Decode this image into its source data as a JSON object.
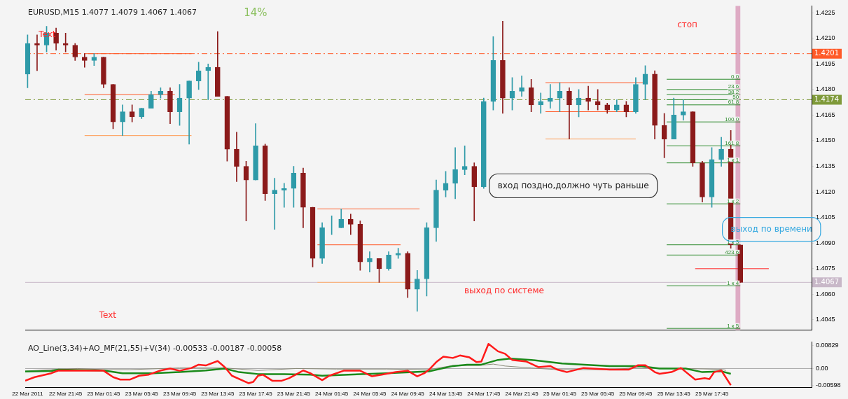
{
  "chart_data": [
    {
      "type": "candlestick",
      "title": "EURUSD,M15 1.4077 1.4079 1.4067 1.4067",
      "x": [
        "2011-03-22T17:45",
        "2011-03-22T18:45",
        "2011-03-22T19:45",
        "2011-03-22T20:45",
        "2011-03-22T21:45",
        "2011-03-22T22:45",
        "2011-03-22T23:45",
        "2011-03-23T00:45",
        "2011-03-23T01:45",
        "2011-03-23T02:45",
        "2011-03-23T03:45",
        "2011-03-23T04:45",
        "2011-03-23T05:45",
        "2011-03-23T06:45",
        "2011-03-23T07:45",
        "2011-03-23T08:45",
        "2011-03-23T09:45",
        "2011-03-23T10:45",
        "2011-03-23T11:45",
        "2011-03-23T12:45",
        "2011-03-23T13:45",
        "2011-03-23T14:45",
        "2011-03-23T15:45",
        "2011-03-23T16:45",
        "2011-03-23T17:45",
        "2011-03-23T18:45",
        "2011-03-23T19:45",
        "2011-03-23T20:45",
        "2011-03-23T21:45",
        "2011-03-23T22:45",
        "2011-03-23T23:45",
        "2011-03-24T00:45",
        "2011-03-24T01:45",
        "2011-03-24T02:45",
        "2011-03-24T03:45",
        "2011-03-24T04:45",
        "2011-03-24T05:45",
        "2011-03-24T06:45",
        "2011-03-24T07:45",
        "2011-03-24T08:45",
        "2011-03-24T09:45",
        "2011-03-24T10:45",
        "2011-03-24T11:45",
        "2011-03-24T12:45",
        "2011-03-24T13:45",
        "2011-03-24T14:45",
        "2011-03-24T15:45",
        "2011-03-24T16:45",
        "2011-03-24T17:45",
        "2011-03-24T18:45",
        "2011-03-24T19:45",
        "2011-03-24T20:45",
        "2011-03-24T21:45",
        "2011-03-24T22:45",
        "2011-03-24T23:45",
        "2011-03-25T00:45",
        "2011-03-25T01:45",
        "2011-03-25T02:45",
        "2011-03-25T03:45",
        "2011-03-25T04:45",
        "2011-03-25T05:45",
        "2011-03-25T06:45",
        "2011-03-25T07:45",
        "2011-03-25T08:45",
        "2011-03-25T09:45",
        "2011-03-25T10:45",
        "2011-03-25T11:45",
        "2011-03-25T12:45",
        "2011-03-25T13:45",
        "2011-03-25T14:45",
        "2011-03-25T15:45",
        "2011-03-25T16:45",
        "2011-03-25T17:45",
        "2011-03-25T18:45",
        "2011-03-25T19:45",
        "2011-03-25T20:45"
      ],
      "ohlc": [
        [
          1.4189,
          1.4212,
          1.4181,
          1.4207
        ],
        [
          1.4207,
          1.4212,
          1.4191,
          1.4206
        ],
        [
          1.4206,
          1.4217,
          1.4202,
          1.4213
        ],
        [
          1.4213,
          1.4216,
          1.4203,
          1.4207
        ],
        [
          1.4207,
          1.4213,
          1.4202,
          1.4206
        ],
        [
          1.4206,
          1.4207,
          1.4197,
          1.4199
        ],
        [
          1.4199,
          1.4201,
          1.4193,
          1.4197
        ],
        [
          1.4197,
          1.4201,
          1.4194,
          1.4199
        ],
        [
          1.4199,
          1.4199,
          1.4181,
          1.4183
        ],
        [
          1.4183,
          1.4183,
          1.4157,
          1.4161
        ],
        [
          1.4161,
          1.4171,
          1.4153,
          1.4167
        ],
        [
          1.4167,
          1.4171,
          1.4161,
          1.4164
        ],
        [
          1.4164,
          1.4169,
          1.4163,
          1.4169
        ],
        [
          1.4169,
          1.4179,
          1.4169,
          1.4177
        ],
        [
          1.4177,
          1.4181,
          1.4175,
          1.4179
        ],
        [
          1.4179,
          1.4181,
          1.416,
          1.4167
        ],
        [
          1.4167,
          1.4183,
          1.4159,
          1.4175
        ],
        [
          1.4175,
          1.4185,
          1.4148,
          1.4185
        ],
        [
          1.4185,
          1.4196,
          1.418,
          1.4191
        ],
        [
          1.4191,
          1.4195,
          1.4174,
          1.4193
        ],
        [
          1.4193,
          1.4214,
          1.4176,
          1.4176
        ],
        [
          1.4176,
          1.4176,
          1.4138,
          1.4145
        ],
        [
          1.4145,
          1.4155,
          1.4126,
          1.4135
        ],
        [
          1.4135,
          1.4138,
          1.4103,
          1.4127
        ],
        [
          1.4127,
          1.416,
          1.4127,
          1.4147
        ],
        [
          1.4147,
          1.4148,
          1.4115,
          1.4119
        ],
        [
          1.4119,
          1.4128,
          1.4098,
          1.4121
        ],
        [
          1.4121,
          1.4125,
          1.4111,
          1.4122
        ],
        [
          1.4122,
          1.4135,
          1.4111,
          1.4131
        ],
        [
          1.4131,
          1.4134,
          1.4099,
          1.4111
        ],
        [
          1.4111,
          1.4111,
          1.4076,
          1.4081
        ],
        [
          1.4081,
          1.4102,
          1.4078,
          1.4099
        ],
        [
          1.4099,
          1.4106,
          1.4095,
          1.4099
        ],
        [
          1.4099,
          1.411,
          1.4099,
          1.4104
        ],
        [
          1.4104,
          1.4107,
          1.4095,
          1.4101
        ],
        [
          1.4101,
          1.4103,
          1.4074,
          1.4079
        ],
        [
          1.4079,
          1.4085,
          1.4073,
          1.4081
        ],
        [
          1.4081,
          1.4081,
          1.4067,
          1.4075
        ],
        [
          1.4075,
          1.4085,
          1.4074,
          1.4083
        ],
        [
          1.4083,
          1.4087,
          1.4081,
          1.4084
        ],
        [
          1.4084,
          1.4085,
          1.4058,
          1.4063
        ],
        [
          1.4063,
          1.4074,
          1.405,
          1.4069
        ],
        [
          1.4069,
          1.4102,
          1.4059,
          1.4099
        ],
        [
          1.4099,
          1.4127,
          1.4091,
          1.4121
        ],
        [
          1.4121,
          1.4132,
          1.4117,
          1.4125
        ],
        [
          1.4125,
          1.4146,
          1.4116,
          1.4133
        ],
        [
          1.4133,
          1.4147,
          1.413,
          1.4135
        ],
        [
          1.4135,
          1.4137,
          1.4103,
          1.4123
        ],
        [
          1.4123,
          1.4175,
          1.4122,
          1.4173
        ],
        [
          1.4173,
          1.4211,
          1.4168,
          1.4197
        ],
        [
          1.4197,
          1.422,
          1.4166,
          1.4175
        ],
        [
          1.4175,
          1.4187,
          1.4168,
          1.4179
        ],
        [
          1.4179,
          1.4188,
          1.4176,
          1.4181
        ],
        [
          1.4181,
          1.4186,
          1.4167,
          1.4171
        ],
        [
          1.4171,
          1.4178,
          1.4166,
          1.4173
        ],
        [
          1.4173,
          1.4183,
          1.4169,
          1.4175
        ],
        [
          1.4175,
          1.4184,
          1.4167,
          1.4179
        ],
        [
          1.4179,
          1.4181,
          1.4151,
          1.4171
        ],
        [
          1.4171,
          1.418,
          1.4164,
          1.4175
        ],
        [
          1.4175,
          1.4182,
          1.4168,
          1.4173
        ],
        [
          1.4173,
          1.418,
          1.4168,
          1.4171
        ],
        [
          1.4171,
          1.4172,
          1.4166,
          1.4168
        ],
        [
          1.4168,
          1.4174,
          1.4167,
          1.4171
        ],
        [
          1.4171,
          1.4173,
          1.4164,
          1.4167
        ],
        [
          1.4167,
          1.4187,
          1.4166,
          1.4183
        ],
        [
          1.4183,
          1.4194,
          1.4174,
          1.4189
        ],
        [
          1.4189,
          1.4191,
          1.4151,
          1.4159
        ],
        [
          1.4159,
          1.4166,
          1.414,
          1.4151
        ],
        [
          1.4151,
          1.4175,
          1.4151,
          1.4165
        ],
        [
          1.4165,
          1.4174,
          1.4162,
          1.4167
        ],
        [
          1.4167,
          1.4167,
          1.4135,
          1.4137
        ],
        [
          1.4137,
          1.4138,
          1.4114,
          1.4117
        ],
        [
          1.4117,
          1.4146,
          1.4111,
          1.4139
        ],
        [
          1.4139,
          1.4152,
          1.4135,
          1.4145
        ],
        [
          1.4145,
          1.4156,
          1.4087,
          1.4089
        ],
        [
          1.4089,
          1.4089,
          1.4067,
          1.4067
        ]
      ],
      "colors": [
        "#2e9aa8",
        "#8b1a1a",
        "#2e9aa8",
        "#8b1a1a",
        "#8b1a1a",
        "#8b1a1a",
        "#8b1a1a",
        "#2e9aa8",
        "#8b1a1a",
        "#8b1a1a",
        "#2e9aa8",
        "#8b1a1a",
        "#2e9aa8",
        "#2e9aa8",
        "#2e9aa8",
        "#8b1a1a",
        "#2e9aa8",
        "#2e9aa8",
        "#2e9aa8",
        "#2e9aa8",
        "#8b1a1a",
        "#8b1a1a",
        "#8b1a1a",
        "#8b1a1a",
        "#2e9aa8",
        "#8b1a1a",
        "#2e9aa8",
        "#2e9aa8",
        "#2e9aa8",
        "#8b1a1a",
        "#8b1a1a",
        "#2e9aa8",
        "#2e9aa8",
        "#2e9aa8",
        "#8b1a1a",
        "#8b1a1a",
        "#2e9aa8",
        "#8b1a1a",
        "#2e9aa8",
        "#2e9aa8",
        "#8b1a1a",
        "#2e9aa8",
        "#2e9aa8",
        "#2e9aa8",
        "#2e9aa8",
        "#2e9aa8",
        "#2e9aa8",
        "#8b1a1a",
        "#2e9aa8",
        "#2e9aa8",
        "#8b1a1a",
        "#2e9aa8",
        "#2e9aa8",
        "#8b1a1a",
        "#2e9aa8",
        "#2e9aa8",
        "#2e9aa8",
        "#8b1a1a",
        "#2e9aa8",
        "#8b1a1a",
        "#8b1a1a",
        "#8b1a1a",
        "#2e9aa8",
        "#8b1a1a",
        "#2e9aa8",
        "#2e9aa8",
        "#8b1a1a",
        "#8b1a1a",
        "#2e9aa8",
        "#2e9aa8",
        "#8b1a1a",
        "#8b1a1a",
        "#2e9aa8",
        "#2e9aa8",
        "#8b1a1a",
        "#8b1a1a"
      ],
      "xlim": [
        "2011-03-22T17:30",
        "2011-03-26T04:15"
      ],
      "ylim": [
        1.4039,
        1.4229
      ],
      "yticks": [
        1.4225,
        {
          "value": 1.421,
          "label": "1.4210"
        },
        1.4195,
        {
          "value": 1.418,
          "label": "1.4180"
        },
        1.4165,
        {
          "value": 1.415,
          "label": "1.4150"
        },
        1.4135,
        {
          "value": 1.412,
          "label": "1.4120"
        },
        1.4105,
        {
          "value": 1.409,
          "label": "1.4090"
        },
        1.4075,
        {
          "value": 1.406,
          "label": "1.4060"
        },
        1.4045
      ],
      "tick_labels": "y",
      "ref_lines": [
        {
          "axis": "y",
          "value": 1.4201,
          "label": "1.4201",
          "color": "#ff5a28",
          "line_style": "dashed"
        },
        {
          "axis": "y",
          "value": 1.4174,
          "label": "1.4174",
          "color": "#7f9a3a",
          "line_style": "dashed"
        },
        {
          "axis": "y",
          "value": 1.4067,
          "label": "1.4067",
          "color": "#c8b8c8",
          "line_style": "solid"
        }
      ],
      "bands": [
        {
          "axis": "x",
          "from": "2011-03-25T20:15",
          "to": "2011-03-25T20:45",
          "color": "#d899b8"
        }
      ],
      "series": [
        {
          "type": "line",
          "name": "0.0",
          "color": "#2e8b2e",
          "x": [
            "2011-03-25T13:00",
            "2011-03-25T20:45"
          ],
          "values": [
            1.4186,
            1.4186
          ]
        },
        {
          "type": "line",
          "name": "23.6",
          "color": "#2e8b2e",
          "x": [
            "2011-03-25T13:00",
            "2011-03-25T20:45"
          ],
          "values": [
            1.418,
            1.418
          ]
        },
        {
          "type": "line",
          "name": "38.2",
          "color": "#2e8b2e",
          "x": [
            "2011-03-25T13:00",
            "2011-03-25T20:45"
          ],
          "values": [
            1.4177,
            1.4177
          ]
        },
        {
          "type": "line",
          "name": "50",
          "color": "#2e8b2e",
          "x": [
            "2011-03-25T13:00",
            "2011-03-25T20:45"
          ],
          "values": [
            1.4174,
            1.4174
          ]
        },
        {
          "type": "line",
          "name": "61.8",
          "color": "#2e8b2e",
          "x": [
            "2011-03-25T13:00",
            "2011-03-25T20:45"
          ],
          "values": [
            1.4171,
            1.4171
          ]
        },
        {
          "type": "line",
          "name": "100.0",
          "color": "#2e8b2e",
          "x": [
            "2011-03-25T13:00",
            "2011-03-25T20:45"
          ],
          "values": [
            1.4161,
            1.4161
          ]
        },
        {
          "type": "line",
          "name": "161.8",
          "color": "#2e8b2e",
          "x": [
            "2011-03-25T13:00",
            "2011-03-25T20:45"
          ],
          "values": [
            1.4147,
            1.4147
          ]
        },
        {
          "type": "line",
          "name": "1 к 1",
          "color": "#2e8b2e",
          "x": [
            "2011-03-25T13:00",
            "2011-03-25T20:45"
          ],
          "values": [
            1.4137,
            1.4137
          ]
        },
        {
          "type": "line",
          "name": "1 к 2",
          "color": "#2e8b2e",
          "x": [
            "2011-03-25T13:00",
            "2011-03-25T20:45"
          ],
          "values": [
            1.4113,
            1.4113
          ]
        },
        {
          "type": "line",
          "name": "1 к 3",
          "color": "#2e8b2e",
          "x": [
            "2011-03-25T13:00",
            "2011-03-25T20:45"
          ],
          "values": [
            1.4089,
            1.4089
          ]
        },
        {
          "type": "line",
          "name": "423.6",
          "color": "#2e8b2e",
          "x": [
            "2011-03-25T13:00",
            "2011-03-25T20:45"
          ],
          "values": [
            1.4083,
            1.4083
          ]
        },
        {
          "type": "line",
          "name": "1 к 4",
          "color": "#2e8b2e",
          "x": [
            "2011-03-25T13:00",
            "2011-03-25T20:45"
          ],
          "values": [
            1.4065,
            1.4065
          ]
        },
        {
          "type": "line",
          "name": "1 к 5",
          "color": "#2e8b2e",
          "x": [
            "2011-03-25T13:00",
            "2011-03-25T20:45"
          ],
          "values": [
            1.404,
            1.404
          ]
        },
        {
          "type": "line",
          "color": "#ff5a28",
          "x": [
            "2011-03-22T23:45",
            "2011-03-23T11:00"
          ],
          "values": [
            1.4201,
            1.4201
          ]
        },
        {
          "type": "line",
          "color": "#ff5a28",
          "x": [
            "2011-03-22T23:45",
            "2011-03-23T09:15"
          ],
          "values": [
            1.4177,
            1.4177
          ]
        },
        {
          "type": "line",
          "color": "#ff9a50",
          "x": [
            "2011-03-22T23:45",
            "2011-03-23T11:00"
          ],
          "values": [
            1.4153,
            1.4153
          ]
        },
        {
          "type": "line",
          "color": "#ff5a28",
          "x": [
            "2011-03-24T00:15",
            "2011-03-24T11:00"
          ],
          "values": [
            1.411,
            1.411
          ]
        },
        {
          "type": "line",
          "color": "#ff5a28",
          "x": [
            "2011-03-24T00:15",
            "2011-03-24T09:00"
          ],
          "values": [
            1.4089,
            1.4089
          ]
        },
        {
          "type": "line",
          "color": "#ffb070",
          "x": [
            "2011-03-24T00:15",
            "2011-03-24T10:15"
          ],
          "values": [
            1.4067,
            1.4067
          ]
        },
        {
          "type": "line",
          "color": "#ff5a28",
          "x": [
            "2011-03-25T00:15",
            "2011-03-25T10:30"
          ],
          "values": [
            1.4184,
            1.4184
          ]
        },
        {
          "type": "line",
          "color": "#ff5a28",
          "x": [
            "2011-03-25T00:15",
            "2011-03-25T09:30"
          ],
          "values": [
            1.4167,
            1.4167
          ]
        },
        {
          "type": "line",
          "color": "#ff9a50",
          "x": [
            "2011-03-25T00:15",
            "2011-03-25T09:45"
          ],
          "values": [
            1.4151,
            1.4151
          ]
        },
        {
          "type": "line",
          "color": "#ff2020",
          "x": [
            "2011-03-25T16:00",
            "2011-03-25T23:45"
          ],
          "values": [
            1.4075,
            1.4075
          ]
        }
      ],
      "annotations": [
        "14%",
        "Text",
        "Text",
        "стоп",
        "вход поздно,должно чуть раньше",
        "выход по системе",
        "выход по времени"
      ]
    },
    {
      "type": "line",
      "title": "AO_Line(3,34)+AO_MF(21,55)+V(34) -0.00533 -0.00187 -0.00058",
      "marker": "none",
      "xlim": [
        "2011-03-22T17:30",
        "2011-03-26T04:15"
      ],
      "xticks": [
        {
          "value": "2011-03-22T17:45",
          "label": "22 Mar 2011"
        },
        {
          "value": "2011-03-22T21:45",
          "label": "22 Mar 21:45"
        },
        {
          "value": "2011-03-23T01:45",
          "label": "23 Mar 01:45"
        },
        {
          "value": "2011-03-23T05:45",
          "label": "23 Mar 05:45"
        },
        {
          "value": "2011-03-23T09:45",
          "label": "23 Mar 09:45"
        },
        {
          "value": "2011-03-23T13:45",
          "label": "23 Mar 13:45"
        },
        {
          "value": "2011-03-23T17:45",
          "label": "23 Mar 17:45"
        },
        {
          "value": "2011-03-23T21:45",
          "label": "23 Mar 21:45"
        },
        {
          "value": "2011-03-24T01:45",
          "label": "24 Mar 01:45"
        },
        {
          "value": "2011-03-24T05:45",
          "label": "24 Mar 05:45"
        },
        {
          "value": "2011-03-24T09:45",
          "label": "24 Mar 09:45"
        },
        {
          "value": "2011-03-24T13:45",
          "label": "24 Mar 13:45"
        },
        {
          "value": "2011-03-24T17:45",
          "label": "24 Mar 17:45"
        },
        {
          "value": "2011-03-24T21:45",
          "label": "24 Mar 21:45"
        },
        {
          "value": "2011-03-25T01:45",
          "label": "25 Mar 01:45"
        },
        {
          "value": "2011-03-25T05:45",
          "label": "25 Mar 05:45"
        },
        {
          "value": "2011-03-25T09:45",
          "label": "25 Mar 09:45"
        },
        {
          "value": "2011-03-25T13:45",
          "label": "25 Mar 13:45"
        },
        {
          "value": "2011-03-25T17:45",
          "label": "25 Mar 17:45"
        }
      ],
      "ylim": [
        -0.0068,
        0.0096
      ],
      "yticks": [
        0.00829,
        {
          "value": 0,
          "label": "0.00"
        },
        -0.00598
      ],
      "ref_lines": [
        {
          "axis": "y",
          "value": 0,
          "color": "#a8a8a8",
          "line_style": "solid"
        }
      ],
      "series": [
        {
          "color": "#ff1a1a",
          "x": [
            "2011-03-22T17:30",
            "2011-03-22T18:30",
            "2011-03-22T20:15",
            "2011-03-22T21:00",
            "2011-03-23T01:45",
            "2011-03-23T02:45",
            "2011-03-23T03:30",
            "2011-03-23T04:30",
            "2011-03-23T05:30",
            "2011-03-23T06:30",
            "2011-03-23T07:45",
            "2011-03-23T08:45",
            "2011-03-23T09:45",
            "2011-03-23T11:00",
            "2011-03-23T11:45",
            "2011-03-23T12:30",
            "2011-03-23T13:45",
            "2011-03-23T14:30",
            "2011-03-23T15:15",
            "2011-03-23T17:00",
            "2011-03-23T17:30",
            "2011-03-23T18:00",
            "2011-03-23T18:30",
            "2011-03-23T19:30",
            "2011-03-23T20:30",
            "2011-03-23T21:15",
            "2011-03-23T22:15",
            "2011-03-23T22:45",
            "2011-03-23T23:30",
            "2011-03-24T00:45",
            "2011-03-24T01:30",
            "2011-03-24T03:00",
            "2011-03-24T04:45",
            "2011-03-24T06:00",
            "2011-03-24T07:00",
            "2011-03-24T08:30",
            "2011-03-24T09:45",
            "2011-03-24T10:45",
            "2011-03-24T11:30",
            "2011-03-24T12:00",
            "2011-03-24T12:45",
            "2011-03-24T13:30",
            "2011-03-24T14:30",
            "2011-03-24T15:15",
            "2011-03-24T16:15",
            "2011-03-24T17:00",
            "2011-03-24T17:30",
            "2011-03-24T18:15",
            "2011-03-24T19:15",
            "2011-03-24T20:00",
            "2011-03-24T20:45",
            "2011-03-24T22:15",
            "2011-03-24T23:30",
            "2011-03-25T00:45",
            "2011-03-25T01:30",
            "2011-03-25T02:30",
            "2011-03-25T04:15",
            "2011-03-25T07:00",
            "2011-03-25T09:00",
            "2011-03-25T10:00",
            "2011-03-25T10:45",
            "2011-03-25T11:45",
            "2011-03-25T12:15",
            "2011-03-25T13:30",
            "2011-03-25T14:30",
            "2011-03-25T16:00",
            "2011-03-25T17:00",
            "2011-03-25T17:30",
            "2011-03-25T18:00",
            "2011-03-25T18:45",
            "2011-03-25T19:45"
          ],
          "values": [
            -0.0044,
            -0.0031,
            -0.0017,
            -0.0007,
            -0.0008,
            -0.0031,
            -0.004,
            -0.004,
            -0.0026,
            -0.0022,
            -0.0007,
            0,
            -0.0008,
            0.0002,
            0.0014,
            0.0011,
            0.0027,
            0.0005,
            -0.0026,
            -0.0053,
            -0.0048,
            -0.0026,
            -0.0022,
            -0.0044,
            -0.0044,
            -0.0035,
            -0.0017,
            -0.0007,
            -0.0017,
            -0.0042,
            -0.0026,
            -0.0008,
            -0.0008,
            -0.0028,
            -0.0022,
            -0.0013,
            -0.0008,
            -0.0028,
            -0.0017,
            -0.0004,
            0.0023,
            0.0043,
            0.0038,
            0.0047,
            0.004,
            0.0023,
            0.0025,
            0.0089,
            0.0062,
            0.0053,
            0.0031,
            0.0025,
            0.0005,
            0.0009,
            -0.0004,
            -0.0013,
            0.0002,
            -0.0004,
            -0.0004,
            0.0012,
            0.0012,
            -0.0013,
            -0.0019,
            -0.0013,
            0.0002,
            -0.004,
            -0.0035,
            -0.0038,
            -0.0013,
            -0.0007,
            -0.006
          ]
        },
        {
          "color": "#1a8a1a",
          "x": [
            "2011-03-22T17:30",
            "2011-03-22T20:15",
            "2011-03-22T21:00",
            "2011-03-23T01:45",
            "2011-03-23T03:45",
            "2011-03-23T07:00",
            "2011-03-23T09:45",
            "2011-03-23T12:30",
            "2011-03-23T14:30",
            "2011-03-23T16:00",
            "2011-03-23T18:00",
            "2011-03-23T20:45",
            "2011-03-23T23:30",
            "2011-03-24T00:45",
            "2011-03-24T03:30",
            "2011-03-24T07:30",
            "2011-03-24T12:00",
            "2011-03-24T14:30",
            "2011-03-24T16:00",
            "2011-03-24T17:30",
            "2011-03-24T19:15",
            "2011-03-24T20:30",
            "2011-03-24T22:45",
            "2011-03-25T02:00",
            "2011-03-25T07:00",
            "2011-03-25T10:15",
            "2011-03-25T12:15",
            "2011-03-25T15:00",
            "2011-03-25T16:45",
            "2011-03-25T18:45",
            "2011-03-25T19:45"
          ],
          "values": [
            -0.0011,
            -0.0009,
            -0.0004,
            -0.0007,
            -0.0017,
            -0.0017,
            -0.0013,
            -0.0007,
            0,
            -0.0013,
            -0.002,
            -0.002,
            -0.0022,
            -0.0026,
            -0.0022,
            -0.0017,
            -0.001,
            0.0009,
            0.0014,
            0.0014,
            0.0031,
            0.0036,
            0.0031,
            0.0018,
            0.0009,
            0.0009,
            0,
            0,
            -0.0013,
            -0.001,
            -0.0019
          ]
        },
        {
          "color": "#8a8a78",
          "x": [
            "2011-03-22T17:30",
            "2011-03-22T20:15",
            "2011-03-22T23:00",
            "2011-03-23T01:45",
            "2011-03-23T04:30",
            "2011-03-23T09:45",
            "2011-03-23T14:30",
            "2011-03-23T18:00",
            "2011-03-23T22:00",
            "2011-03-24T02:15",
            "2011-03-24T07:30",
            "2011-03-24T12:00",
            "2011-03-24T14:30",
            "2011-03-24T17:15",
            "2011-03-24T18:45",
            "2011-03-24T20:00",
            "2011-03-24T22:45",
            "2011-03-25T01:30",
            "2011-03-25T07:00",
            "2011-03-25T09:30",
            "2011-03-25T15:00",
            "2011-03-25T18:45",
            "2011-03-25T19:15"
          ],
          "values": [
            -0.0009,
            -0.0004,
            0,
            -0.0004,
            -0.0004,
            0.0002,
            0.0002,
            -0.0007,
            0,
            -0.0002,
            -0.0002,
            -0.0004,
            0.0011,
            0.0011,
            0.0016,
            0.0009,
            0.0002,
            -0.0004,
            -0.0004,
            0.0002,
            0,
            -0.0003,
            -0.0007
          ]
        }
      ]
    }
  ]
}
